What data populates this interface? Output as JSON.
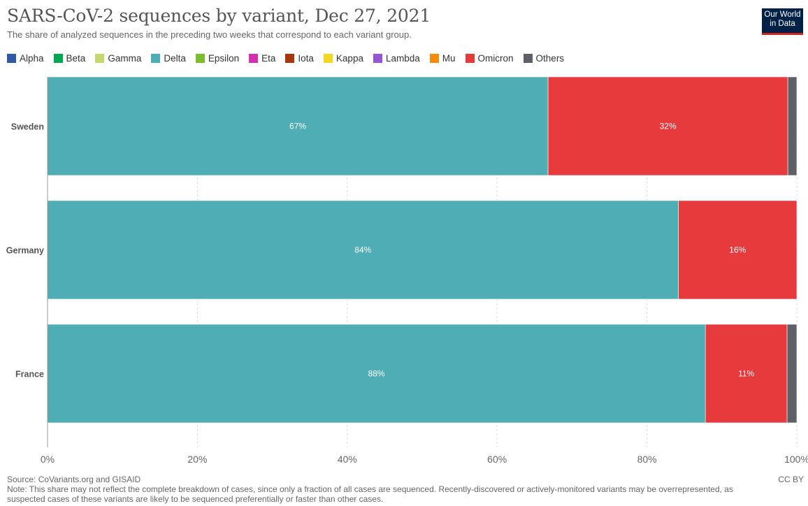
{
  "header": {
    "title": "SARS-CoV-2 sequences by variant, Dec 27, 2021",
    "subtitle": "The share of analyzed sequences in the preceding two weeks that correspond to each variant group.",
    "logo_line1": "Our World",
    "logo_line2": "in Data"
  },
  "legend": [
    {
      "label": "Alpha",
      "color": "#2e5aa7"
    },
    {
      "label": "Beta",
      "color": "#00a94f"
    },
    {
      "label": "Gamma",
      "color": "#c5d86d"
    },
    {
      "label": "Delta",
      "color": "#4fadb5"
    },
    {
      "label": "Epsilon",
      "color": "#7cbc31"
    },
    {
      "label": "Eta",
      "color": "#d62eb0"
    },
    {
      "label": "Iota",
      "color": "#a8370f"
    },
    {
      "label": "Kappa",
      "color": "#f4d623"
    },
    {
      "label": "Lambda",
      "color": "#9854d3"
    },
    {
      "label": "Mu",
      "color": "#f28b0e"
    },
    {
      "label": "Omicron",
      "color": "#e63a3d"
    },
    {
      "label": "Others",
      "color": "#5d6066"
    }
  ],
  "chart_data": {
    "type": "bar",
    "orientation": "horizontal",
    "stacked": true,
    "categories": [
      "Sweden",
      "Germany",
      "France"
    ],
    "series": [
      {
        "name": "Delta",
        "color": "#4fadb5",
        "values": [
          66.8,
          84.2,
          87.8
        ],
        "labels": [
          "67%",
          "84%",
          "88%"
        ]
      },
      {
        "name": "Omicron",
        "color": "#e63a3d",
        "values": [
          32.0,
          15.8,
          10.9
        ],
        "labels": [
          "32%",
          "16%",
          "11%"
        ]
      },
      {
        "name": "Others",
        "color": "#5d6066",
        "values": [
          1.2,
          0.0,
          1.3
        ],
        "labels": [
          "",
          "",
          ""
        ]
      }
    ],
    "xlim": [
      0,
      100
    ],
    "xticks": [
      0,
      20,
      40,
      60,
      80,
      100
    ],
    "xtick_labels": [
      "0%",
      "20%",
      "40%",
      "60%",
      "80%",
      "100%"
    ],
    "grid": true,
    "legend_position": "top"
  },
  "footer": {
    "source": "Source: CoVariants.org and GISAID",
    "note_line1": "Note: This share may not reflect the complete breakdown of cases, since only a fraction of all cases are sequenced. Recently-discovered or actively-monitored variants may be overrepresented, as",
    "note_line2": "suspected cases of these variants are likely to be sequenced preferentially or faster than other cases.",
    "license": "CC BY"
  }
}
